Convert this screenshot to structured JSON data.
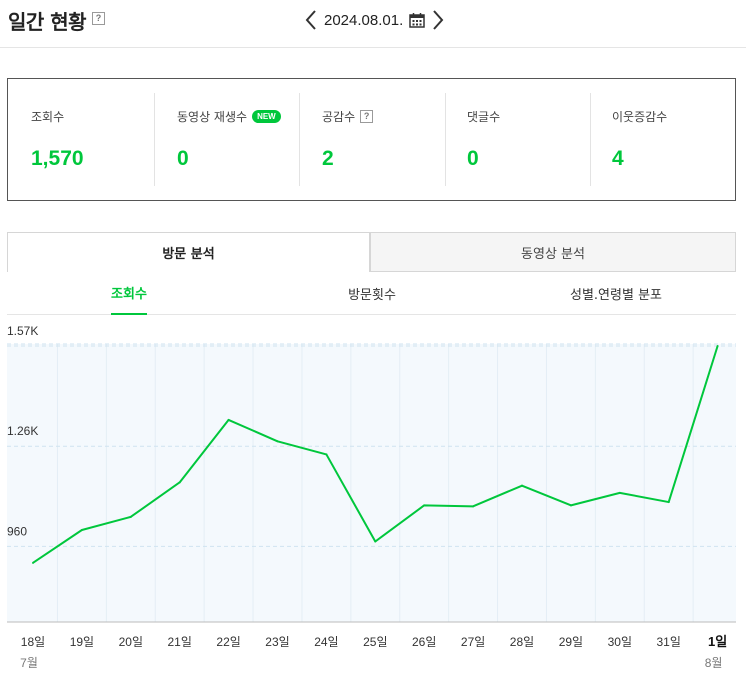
{
  "header": {
    "title": "일간 현황",
    "help_glyph": "?",
    "date": "2024.08.01."
  },
  "stats": [
    {
      "label": "조회수",
      "value": "1,570"
    },
    {
      "label": "동영상 재생수",
      "value": "0",
      "badge": "NEW"
    },
    {
      "label": "공감수",
      "value": "2",
      "help": "?"
    },
    {
      "label": "댓글수",
      "value": "0"
    },
    {
      "label": "이웃증감수",
      "value": "4"
    }
  ],
  "main_tabs": [
    {
      "label": "방문 분석",
      "active": true
    },
    {
      "label": "동영상 분석",
      "active": false
    }
  ],
  "sub_tabs": [
    {
      "label": "조회수",
      "active": true
    },
    {
      "label": "방문횟수",
      "active": false
    },
    {
      "label": "성별.연령별 분포",
      "active": false
    }
  ],
  "colors": {
    "accent": "#00c73c",
    "chart_bg": "#f4f9fd",
    "grid": "#cfe3f0"
  },
  "chart_data": {
    "type": "line",
    "categories": [
      "18일",
      "19일",
      "20일",
      "21일",
      "22일",
      "23일",
      "24일",
      "25일",
      "26일",
      "27일",
      "28일",
      "29일",
      "30일",
      "31일",
      "1일"
    ],
    "month_labels": [
      {
        "index": 0,
        "label": "7월"
      },
      {
        "index": 14,
        "label": "8월"
      }
    ],
    "highlight_category": "1일",
    "values": [
      910,
      1010,
      1050,
      1155,
      1345,
      1280,
      1240,
      975,
      1085,
      1082,
      1145,
      1085,
      1123,
      1095,
      1570
    ],
    "yticks": [
      {
        "value": 960,
        "label": "960"
      },
      {
        "value": 1265,
        "label": "1.26K"
      },
      {
        "value": 1570,
        "label": "1.57K"
      }
    ],
    "ylim": [
      870,
      1570
    ],
    "grid": true,
    "line_color": "#00c73c",
    "title": "",
    "xlabel": "",
    "ylabel": ""
  }
}
